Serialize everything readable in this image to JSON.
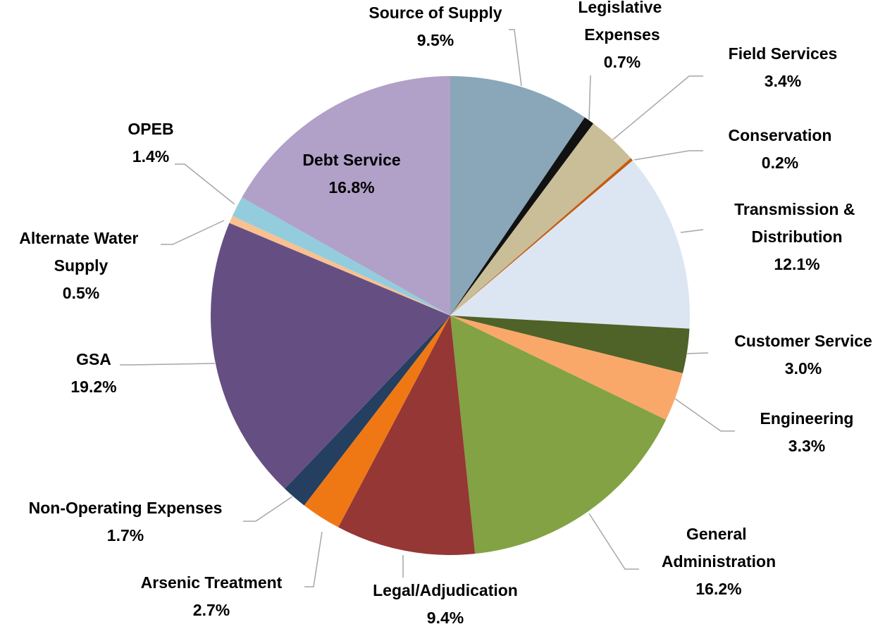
{
  "chart_data": {
    "type": "pie",
    "categories": [
      "Source of Supply",
      "Legislative Expenses",
      "Field Services",
      "Conservation",
      "Transmission & Distribution",
      "Customer Service",
      "Engineering",
      "General Administration",
      "Legal/Adjudication",
      "Arsenic Treatment",
      "Non-Operating Expenses",
      "GSA",
      "Alternate Water Supply",
      "OPEB",
      "Debt Service"
    ],
    "values": [
      9.5,
      0.7,
      3.4,
      0.2,
      12.1,
      3.0,
      3.3,
      16.2,
      9.4,
      2.7,
      1.7,
      19.2,
      0.5,
      1.4,
      16.8
    ],
    "value_labels": [
      "9.5%",
      "0.7%",
      "3.4%",
      "0.2%",
      "12.1%",
      "3.0%",
      "3.3%",
      "16.2%",
      "9.4%",
      "2.7%",
      "1.7%",
      "19.2%",
      "0.5%",
      "1.4%",
      "16.8%"
    ],
    "colors": [
      "#8aa6b9",
      "#111111",
      "#c9be97",
      "#c55a11",
      "#dce6f2",
      "#4f6228",
      "#f9a86a",
      "#82a244",
      "#953735",
      "#f07814",
      "#243f60",
      "#654f82",
      "#fac090",
      "#93cddd",
      "#b1a0c7"
    ]
  }
}
